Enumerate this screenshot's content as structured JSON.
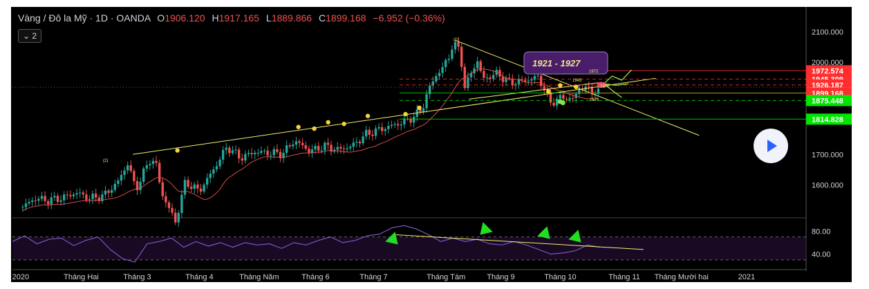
{
  "header": {
    "symbol": "Vàng / Đô la Mỹ · 1D · OANDA",
    "o_label": "O",
    "o": "1906.120",
    "h_label": "H",
    "h": "1917.165",
    "l_label": "L",
    "l": "1889.866",
    "c_label": "C",
    "c": "1899.168",
    "change": "−6.952 (−0.36%)",
    "indicator_count": "2"
  },
  "colors": {
    "background": "#000000",
    "up": "#26a69a",
    "down": "#ef5350",
    "trendline": "#f5f171",
    "rsi": "#7e57c2",
    "ma": "#ef5350",
    "annotation_box": "#4a1d6b",
    "label_red": "#ff2d2d",
    "label_green": "#00e600"
  },
  "chart_data": [
    {
      "type": "candlestick",
      "title": "",
      "xlabel": "",
      "ylabel": "",
      "ylim": [
        1500,
        2140
      ],
      "grid": false,
      "x_ticks": [
        "2020",
        "Tháng Hai",
        "Tháng 3",
        "Tháng 4",
        "Tháng Năm",
        "Tháng 6",
        "Tháng 7",
        "Tháng Tám",
        "Tháng 9",
        "Tháng 10",
        "Tháng 11",
        "Tháng Mười hai",
        "2021"
      ],
      "y_ticks": [
        "2100.000",
        "2000.000",
        "1700.000",
        "1600.000"
      ],
      "close_series": [
        {
          "x": "2020-01-02",
          "y": 1528
        },
        {
          "x": "2020-01-08",
          "y": 1556
        },
        {
          "x": "2020-01-15",
          "y": 1550
        },
        {
          "x": "2020-01-22",
          "y": 1558
        },
        {
          "x": "2020-01-29",
          "y": 1575
        },
        {
          "x": "2020-02-05",
          "y": 1556
        },
        {
          "x": "2020-02-12",
          "y": 1566
        },
        {
          "x": "2020-02-19",
          "y": 1610
        },
        {
          "x": "2020-02-24",
          "y": 1672
        },
        {
          "x": "2020-02-28",
          "y": 1585
        },
        {
          "x": "2020-03-06",
          "y": 1682
        },
        {
          "x": "2020-03-09",
          "y": 1675
        },
        {
          "x": "2020-03-12",
          "y": 1575
        },
        {
          "x": "2020-03-19",
          "y": 1480
        },
        {
          "x": "2020-03-24",
          "y": 1610
        },
        {
          "x": "2020-03-31",
          "y": 1580
        },
        {
          "x": "2020-04-07",
          "y": 1648
        },
        {
          "x": "2020-04-14",
          "y": 1725
        },
        {
          "x": "2020-04-21",
          "y": 1688
        },
        {
          "x": "2020-04-28",
          "y": 1708
        },
        {
          "x": "2020-05-05",
          "y": 1705
        },
        {
          "x": "2020-05-12",
          "y": 1702
        },
        {
          "x": "2020-05-18",
          "y": 1745
        },
        {
          "x": "2020-05-26",
          "y": 1710
        },
        {
          "x": "2020-06-02",
          "y": 1727
        },
        {
          "x": "2020-06-09",
          "y": 1715
        },
        {
          "x": "2020-06-16",
          "y": 1727
        },
        {
          "x": "2020-06-23",
          "y": 1765
        },
        {
          "x": "2020-06-30",
          "y": 1781
        },
        {
          "x": "2020-07-07",
          "y": 1795
        },
        {
          "x": "2020-07-14",
          "y": 1810
        },
        {
          "x": "2020-07-21",
          "y": 1842
        },
        {
          "x": "2020-07-24",
          "y": 1900
        },
        {
          "x": "2020-07-28",
          "y": 1955
        },
        {
          "x": "2020-07-31",
          "y": 1975
        },
        {
          "x": "2020-08-04",
          "y": 2018
        },
        {
          "x": "2020-08-06",
          "y": 2065
        },
        {
          "x": "2020-08-10",
          "y": 2030
        },
        {
          "x": "2020-08-11",
          "y": 1912
        },
        {
          "x": "2020-08-14",
          "y": 1945
        },
        {
          "x": "2020-08-18",
          "y": 2010
        },
        {
          "x": "2020-08-21",
          "y": 1945
        },
        {
          "x": "2020-08-28",
          "y": 1963
        },
        {
          "x": "2020-09-04",
          "y": 1933
        },
        {
          "x": "2020-09-11",
          "y": 1940
        },
        {
          "x": "2020-09-18",
          "y": 1952
        },
        {
          "x": "2020-09-21",
          "y": 1912
        },
        {
          "x": "2020-09-24",
          "y": 1868
        },
        {
          "x": "2020-09-30",
          "y": 1886
        },
        {
          "x": "2020-10-06",
          "y": 1880
        },
        {
          "x": "2020-10-09",
          "y": 1920
        },
        {
          "x": "2020-10-15",
          "y": 1907
        },
        {
          "x": "2020-10-19",
          "y": 1899
        }
      ],
      "horizontal_levels": [
        {
          "label": "1972.574",
          "y": 1972.574,
          "color": "#ff2d2d"
        },
        {
          "label": "1945.309",
          "y": 1945.309,
          "color": "#ff2d2d"
        },
        {
          "label": "1926.187",
          "y": 1926.187,
          "color": "#ff2d2d"
        },
        {
          "label": "1900.248",
          "y": 1900.248,
          "color": "#00e600"
        },
        {
          "label": "1899.168",
          "y": 1899.168,
          "color": "#ff2d2d"
        },
        {
          "label": "1875.448",
          "y": 1875.448,
          "color": "#00e600"
        },
        {
          "label": "1814.828",
          "y": 1814.828,
          "color": "#00e600"
        }
      ],
      "annotations": [
        {
          "text": "1921 - 1927"
        },
        {
          "text": "1972"
        },
        {
          "text": "1945"
        },
        {
          "text": "1926"
        },
        {
          "text": "1875"
        },
        {
          "text": "(1)"
        },
        {
          "text": "(2)"
        }
      ]
    },
    {
      "type": "line",
      "title": "",
      "ylim": [
        20,
        100
      ],
      "y_ticks": [
        "80.00",
        "40.00"
      ],
      "bands": [
        70,
        30
      ],
      "series": [
        {
          "values": [
            62,
            72,
            58,
            66,
            68,
            55,
            64,
            70,
            48,
            32,
            26,
            58,
            62,
            68,
            52,
            62,
            54,
            60,
            52,
            60,
            56,
            58,
            50,
            60,
            56,
            64,
            70,
            60,
            64,
            72,
            75,
            86,
            90,
            84,
            74,
            62,
            68,
            62,
            66,
            58,
            56,
            62,
            56,
            48,
            40,
            42,
            46,
            56,
            52
          ]
        }
      ]
    }
  ]
}
